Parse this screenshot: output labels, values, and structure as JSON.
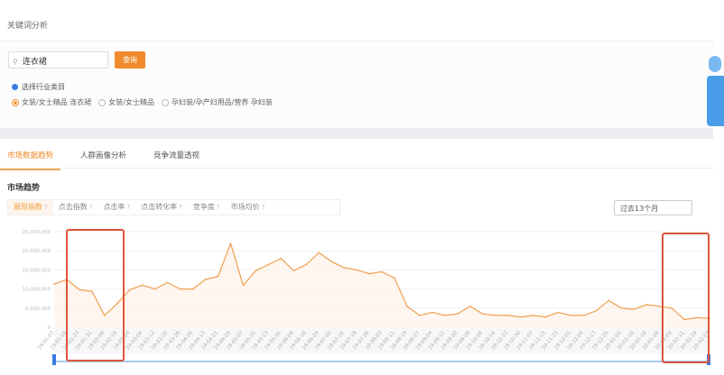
{
  "header": {
    "title": "关键词分析"
  },
  "search": {
    "value": "连衣裙",
    "button": "查询"
  },
  "category": {
    "label": "选择行业类目",
    "options": [
      {
        "label": "女装/女士精品 连衣裙",
        "selected": true
      },
      {
        "label": "女装/女士精品",
        "selected": false
      },
      {
        "label": "孕妇装/孕产妇用品/营养 孕妇装",
        "selected": false
      }
    ]
  },
  "tabs": [
    {
      "label": "市场数据趋势",
      "active": true
    },
    {
      "label": "人群画像分析",
      "active": false
    },
    {
      "label": "竞争流量透视",
      "active": false
    }
  ],
  "section_title": "市场趋势",
  "metrics": [
    {
      "label": "展现指数",
      "active": true
    },
    {
      "label": "点击指数"
    },
    {
      "label": "点击率"
    },
    {
      "label": "点击转化率"
    },
    {
      "label": "竞争度"
    },
    {
      "label": "市场均价"
    }
  ],
  "help_icon": "?",
  "range": {
    "value": "过去13个月"
  },
  "colors": {
    "accent": "#f08a2a",
    "line": "#f0a050",
    "annotation": "#e0553a",
    "widget": "#4a9de8"
  },
  "chart_data": {
    "type": "area",
    "ylim": [
      0,
      25000000
    ],
    "y_ticks": [
      "25,000,000",
      "20,000,000",
      "15,000,000",
      "10,000,000",
      "5,000,000",
      "0"
    ],
    "grid": true,
    "x": [
      "19-01-07",
      "19-01-15",
      "19-01-23",
      "19-01-31",
      "19-02-08",
      "19-02-16",
      "19-02-24",
      "19-03-04",
      "19-03-12",
      "19-03-20",
      "19-03-28",
      "19-04-05",
      "19-04-13",
      "19-04-21",
      "19-04-29",
      "19-05-07",
      "19-05-15",
      "19-05-23",
      "19-05-31",
      "19-06-08",
      "19-06-16",
      "19-06-24",
      "19-07-02",
      "19-07-10",
      "19-07-18",
      "19-07-26",
      "19-08-03",
      "19-08-11",
      "19-08-19",
      "19-08-27",
      "19-09-04",
      "19-09-12",
      "19-09-20",
      "19-09-28",
      "19-10-06",
      "19-10-14",
      "19-10-22",
      "19-10-30",
      "19-11-07",
      "19-11-15",
      "19-11-23",
      "19-12-01",
      "19-12-09",
      "19-12-17",
      "19-12-25",
      "20-01-02",
      "20-01-10",
      "20-01-18",
      "20-01-26",
      "20-02-03",
      "20-02-11",
      "20-02-19",
      "20-02-27"
    ],
    "values": [
      11300000,
      12500000,
      9800000,
      9400000,
      3100000,
      6200000,
      9800000,
      11000000,
      10000000,
      11700000,
      10000000,
      10000000,
      12500000,
      13300000,
      21900000,
      11000000,
      14800000,
      16400000,
      18000000,
      14800000,
      16400000,
      19500000,
      17200000,
      15600000,
      15000000,
      14000000,
      14500000,
      12900000,
      5500000,
      3100000,
      3900000,
      3100000,
      3500000,
      5500000,
      3500000,
      3100000,
      3100000,
      2700000,
      3100000,
      2700000,
      3900000,
      3100000,
      3100000,
      4300000,
      7000000,
      5000000,
      4700000,
      5900000,
      5500000,
      5000000,
      2000000,
      2500000,
      2300000
    ]
  }
}
